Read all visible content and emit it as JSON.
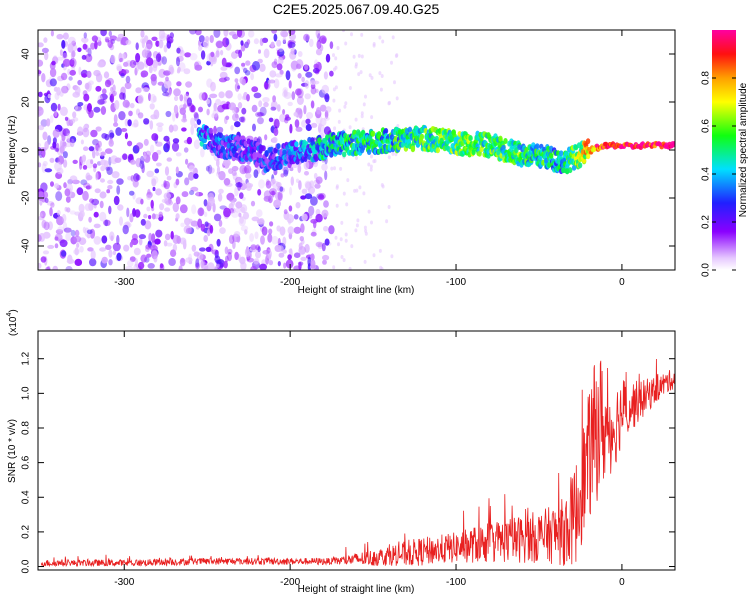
{
  "page_title": "C2E5.2025.067.09.40.G25",
  "chart_data": [
    {
      "type": "heatmap",
      "title": "C2E5.2025.067.09.40.G25",
      "xlabel": "Height of straight line (km)",
      "ylabel": "Frequency (Hz)",
      "xlim": [
        -352,
        32
      ],
      "ylim": [
        -50,
        50
      ],
      "xticks": [
        -300,
        -200,
        -100,
        0
      ],
      "yticks": [
        -40,
        -20,
        0,
        20,
        40
      ],
      "xtick_labels": [
        "-300",
        "-200",
        "-100",
        "0"
      ],
      "ytick_labels": [
        "-40",
        "-20",
        "0",
        "20",
        "40"
      ],
      "colorbar": {
        "label": "Normalized spectral amplitude",
        "range": [
          0.0,
          1.0
        ],
        "ticks": [
          0.0,
          0.2,
          0.4,
          0.6,
          0.8
        ],
        "tick_labels": [
          "0.0",
          "0.2",
          "0.4",
          "0.6",
          "0.8"
        ],
        "colormap": "rainbow (white-violet-blue-cyan-green-yellow-orange-red-magenta)"
      },
      "signal_track": {
        "description": "Frequency of dominant spectral ridge versus height",
        "x": [
          -255,
          -245,
          -225,
          -215,
          -175,
          -160,
          -140,
          -120,
          -100,
          -80,
          -60,
          -45,
          -35,
          -25,
          -15,
          -5,
          5,
          15,
          32
        ],
        "y": [
          8,
          2,
          0,
          -4,
          2,
          3,
          4,
          5,
          3,
          2,
          -2,
          -3,
          -5,
          -2,
          1,
          2,
          1.5,
          2,
          2
        ],
        "amplitude": [
          0.3,
          0.25,
          0.2,
          0.2,
          0.4,
          0.45,
          0.45,
          0.5,
          0.55,
          0.5,
          0.5,
          0.45,
          0.4,
          0.6,
          0.9,
          0.95,
          0.95,
          0.95,
          0.95
        ]
      },
      "noise_region": {
        "x_range": [
          -352,
          -175
        ],
        "y_range": [
          -50,
          50
        ],
        "amplitude": [
          0.05,
          0.25
        ]
      },
      "grid": false
    },
    {
      "type": "line",
      "title": "",
      "xlabel": "Height of straight line (km)",
      "ylabel": "SNR (10 * v/v)",
      "y_multiplier_label": "(x10",
      "y_multiplier_exponent": "4",
      "xlim": [
        -352,
        32
      ],
      "ylim": [
        -0.02,
        1.36
      ],
      "xticks": [
        -300,
        -200,
        -100,
        0
      ],
      "yticks": [
        0.0,
        0.2,
        0.4,
        0.6,
        0.8,
        1.0,
        1.2
      ],
      "xtick_labels": [
        "-300",
        "-200",
        "-100",
        "0"
      ],
      "ytick_labels": [
        "0.0",
        "0.2",
        "0.4",
        "0.6",
        "0.8",
        "1.0",
        "1.2"
      ],
      "series": [
        {
          "color": "#e82020",
          "x": [
            -350,
            -300,
            -250,
            -200,
            -175,
            -150,
            -125,
            -100,
            -80,
            -60,
            -45,
            -35,
            -28,
            -22,
            -18,
            -14,
            -10,
            -5,
            0,
            10,
            20,
            30
          ],
          "y": [
            0.02,
            0.02,
            0.03,
            0.03,
            0.03,
            0.05,
            0.08,
            0.11,
            0.14,
            0.16,
            0.18,
            0.2,
            0.3,
            0.55,
            0.7,
            0.85,
            0.78,
            0.8,
            0.9,
            0.95,
            1.02,
            1.08
          ],
          "spread": [
            0.02,
            0.02,
            0.02,
            0.02,
            0.02,
            0.05,
            0.08,
            0.09,
            0.12,
            0.14,
            0.16,
            0.2,
            0.3,
            0.35,
            0.4,
            0.45,
            0.3,
            0.25,
            0.2,
            0.12,
            0.08,
            0.06
          ]
        }
      ],
      "grid": false
    }
  ]
}
